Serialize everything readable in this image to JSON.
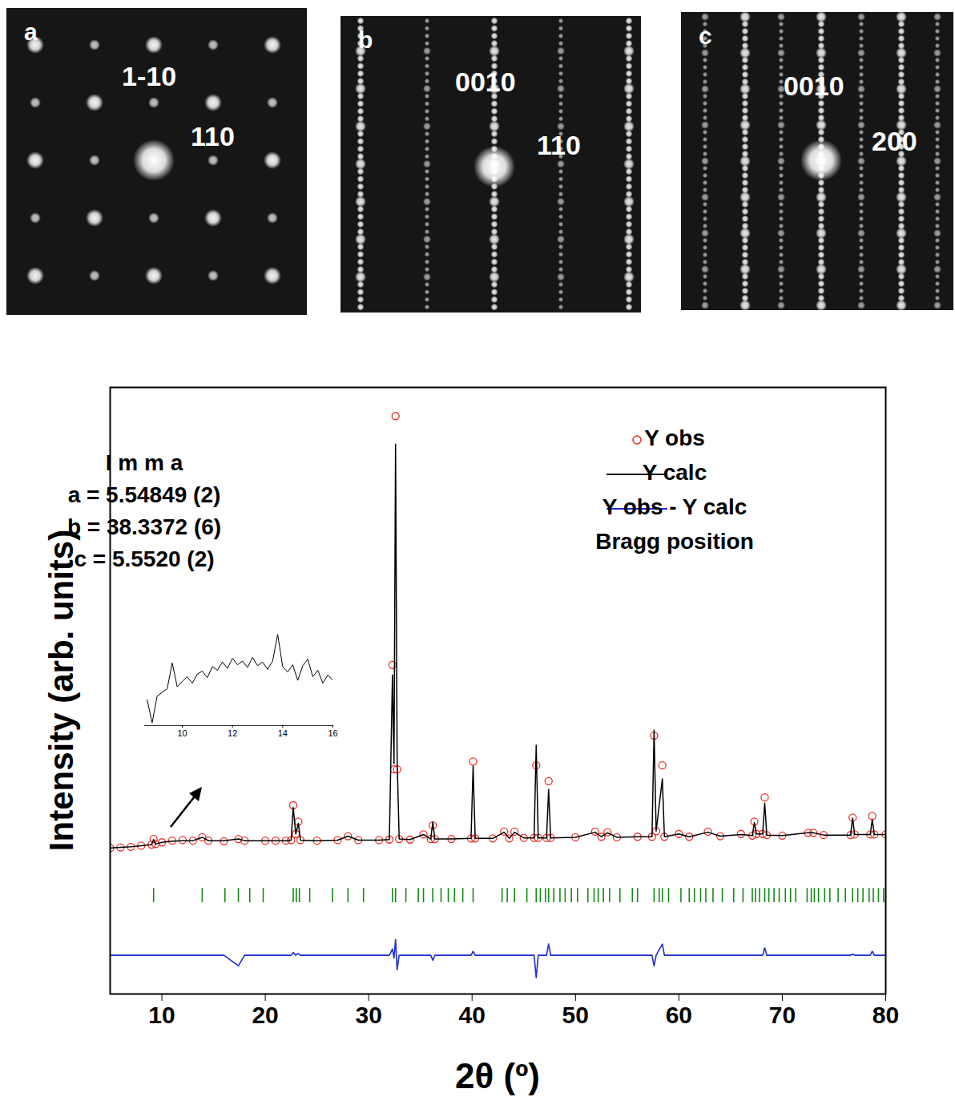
{
  "diffraction_patterns": [
    {
      "panel": "a",
      "labels": [
        "1-10",
        "110"
      ]
    },
    {
      "panel": "b",
      "labels": [
        "0010",
        "110"
      ]
    },
    {
      "panel": "c",
      "labels": [
        "0010",
        "200"
      ]
    }
  ],
  "chart_data": [
    {
      "type": "line",
      "x_label": "2θ (º)",
      "y_label": "Intensity (arb. units)",
      "annotations": [
        "I m m a",
        "a = 5.54849 (2)",
        "b = 38.3372 (6)",
        "c = 5.5520 (2)"
      ],
      "x": [
        5,
        6,
        7,
        8,
        9,
        9.2,
        9.4,
        10,
        11,
        12,
        13,
        13.9,
        14.5,
        16,
        17.4,
        18,
        20,
        21,
        22,
        22.5,
        22.7,
        22.95,
        23.2,
        23.4,
        25,
        27,
        28,
        29,
        31,
        32,
        32.3,
        32.45,
        32.6,
        32.75,
        32.95,
        34,
        35.3,
        36,
        36.2,
        36.4,
        38,
        39.9,
        40.1,
        40.3,
        42,
        43.1,
        43.6,
        44.1,
        45,
        46,
        46.2,
        46.4,
        47.2,
        47.4,
        47.6,
        50,
        51.9,
        52.5,
        53.1,
        54,
        56,
        57.4,
        57.6,
        57.8,
        58.4,
        58.6,
        60,
        61,
        62.8,
        64,
        66,
        67.1,
        67.3,
        67.5,
        68.1,
        68.3,
        68.5,
        70,
        72.5,
        73,
        74,
        76.6,
        76.8,
        77,
        78.5,
        78.7,
        78.9,
        80
      ],
      "series": [
        {
          "name": "Y obs",
          "color": "#e8302a",
          "type": "scatter",
          "marker": "circle",
          "values": [
            26.0,
            26.1,
            26.2,
            26.4,
            26.6,
            27.6,
            26.7,
            27.0,
            27.3,
            27.4,
            27.3,
            27.9,
            27.3,
            27.2,
            27.6,
            27.3,
            27.3,
            27.3,
            27.3,
            27.4,
            33.6,
            28.5,
            30.7,
            27.4,
            27.3,
            27.4,
            28.1,
            27.4,
            27.4,
            27.5,
            58.6,
            40.0,
            102.9,
            40.0,
            27.6,
            27.5,
            28.4,
            27.6,
            30.0,
            27.6,
            27.6,
            27.7,
            41.4,
            27.7,
            27.7,
            28.9,
            27.7,
            28.9,
            27.8,
            27.8,
            40.7,
            27.8,
            27.8,
            37.9,
            27.8,
            27.9,
            28.9,
            28.0,
            28.8,
            27.9,
            28.0,
            28.0,
            46.0,
            29.0,
            40.7,
            28.0,
            28.5,
            28.0,
            28.9,
            28.1,
            28.5,
            28.2,
            30.7,
            28.5,
            28.5,
            35.0,
            28.3,
            28.2,
            28.7,
            28.7,
            28.3,
            28.3,
            31.4,
            28.4,
            28.4,
            31.7,
            28.4,
            28.4
          ]
        },
        {
          "name": "Y calc",
          "color": "#000000",
          "type": "line",
          "values": [
            26.0,
            26.1,
            26.2,
            26.4,
            26.6,
            27.5,
            26.7,
            27.0,
            27.2,
            27.3,
            27.3,
            27.9,
            27.3,
            27.3,
            27.6,
            27.3,
            27.3,
            27.3,
            27.3,
            27.4,
            33.2,
            28.5,
            30.4,
            27.4,
            27.3,
            27.4,
            28.1,
            27.4,
            27.4,
            27.5,
            56.8,
            41.0,
            97.9,
            42.0,
            27.6,
            27.5,
            28.4,
            27.6,
            30.6,
            27.6,
            27.6,
            27.7,
            40.6,
            27.7,
            27.7,
            28.8,
            27.7,
            28.8,
            27.8,
            27.8,
            44.3,
            27.8,
            27.8,
            36.4,
            27.8,
            27.9,
            28.8,
            28.0,
            28.7,
            27.9,
            28.0,
            28.0,
            47.0,
            29.0,
            38.3,
            28.0,
            28.5,
            28.0,
            28.8,
            28.1,
            28.4,
            28.2,
            30.5,
            28.5,
            28.5,
            34.0,
            28.3,
            28.2,
            28.7,
            28.7,
            28.3,
            28.3,
            31.3,
            28.4,
            28.4,
            31.0,
            28.4,
            28.4
          ]
        },
        {
          "name": "Y obs - Y calc",
          "color": "#1f2bd6",
          "type": "line",
          "values": [
            6.9,
            6.9,
            6.9,
            6.9,
            6.9,
            6.9,
            6.9,
            6.9,
            6.9,
            6.9,
            6.9,
            6.9,
            6.9,
            6.9,
            5.0,
            6.9,
            6.9,
            6.9,
            6.9,
            6.9,
            7.4,
            6.9,
            7.2,
            6.9,
            6.9,
            6.9,
            6.9,
            6.9,
            6.9,
            6.9,
            8.0,
            6.4,
            9.7,
            4.3,
            6.9,
            6.9,
            6.9,
            6.9,
            6.0,
            6.9,
            6.9,
            6.9,
            7.6,
            6.9,
            6.9,
            6.9,
            6.9,
            6.9,
            6.9,
            6.9,
            2.9,
            6.9,
            6.9,
            8.9,
            6.9,
            6.9,
            6.9,
            6.9,
            6.9,
            6.9,
            6.9,
            6.9,
            5.0,
            6.9,
            8.9,
            6.9,
            6.9,
            6.9,
            6.9,
            6.9,
            6.9,
            6.9,
            6.9,
            6.9,
            6.9,
            8.2,
            6.9,
            6.9,
            6.9,
            6.9,
            6.9,
            6.9,
            7.1,
            6.9,
            6.9,
            7.6,
            6.9,
            6.9
          ]
        },
        {
          "name": "Bragg position",
          "color": "#138a13",
          "type": "scatter",
          "marker": "tick",
          "x": [
            9.2,
            13.9,
            16.1,
            17.4,
            18.5,
            19.8,
            22.7,
            23.0,
            23.3,
            24.3,
            26.5,
            28.0,
            29.5,
            32.3,
            32.6,
            33.6,
            34.8,
            35.3,
            36.2,
            37.0,
            37.7,
            38.3,
            39.1,
            40.1,
            42.9,
            43.4,
            44.1,
            45.3,
            46.2,
            46.6,
            47.1,
            47.4,
            47.9,
            48.5,
            49.0,
            49.6,
            50.2,
            51.2,
            51.8,
            52.2,
            52.7,
            53.3,
            54.3,
            55.5,
            56.0,
            57.6,
            58.1,
            58.4,
            59.0,
            60.2,
            61.0,
            61.5,
            62.1,
            62.6,
            63.3,
            64.2,
            65.3,
            66.2,
            67.1,
            67.4,
            67.8,
            68.3,
            68.7,
            69.2,
            69.7,
            70.3,
            70.8,
            71.3,
            72.4,
            72.8,
            73.1,
            73.5,
            74.1,
            74.6,
            75.4,
            76.1,
            76.8,
            77.3,
            77.8,
            78.4,
            78.8,
            79.3,
            79.8
          ],
          "values": [
            17.6,
            17.6,
            17.6,
            17.6,
            17.6,
            17.6,
            17.6,
            17.6,
            17.6,
            17.6,
            17.6,
            17.6,
            17.6,
            17.6,
            17.6,
            17.6,
            17.6,
            17.6,
            17.6,
            17.6,
            17.6,
            17.6,
            17.6,
            17.6,
            17.6,
            17.6,
            17.6,
            17.6,
            17.6,
            17.6,
            17.6,
            17.6,
            17.6,
            17.6,
            17.6,
            17.6,
            17.6,
            17.6,
            17.6,
            17.6,
            17.6,
            17.6,
            17.6,
            17.6,
            17.6,
            17.6,
            17.6,
            17.6,
            17.6,
            17.6,
            17.6,
            17.6,
            17.6,
            17.6,
            17.6,
            17.6,
            17.6,
            17.6,
            17.6,
            17.6,
            17.6,
            17.6,
            17.6,
            17.6,
            17.6,
            17.6,
            17.6,
            17.6,
            17.6,
            17.6,
            17.6,
            17.6,
            17.6,
            17.6,
            17.6,
            17.6,
            17.6,
            17.6,
            17.6,
            17.6,
            17.6,
            17.6,
            17.6
          ]
        }
      ],
      "xlim": [
        5,
        80
      ],
      "ylim": [
        0,
        108
      ],
      "xticks": [
        10,
        20,
        30,
        40,
        50,
        60,
        70,
        80
      ],
      "tick_labels": "x",
      "legend": "top-right"
    },
    {
      "type": "line",
      "color": "#000000",
      "x": [
        8.6,
        8.8,
        9.0,
        9.2,
        9.4,
        9.6,
        9.8,
        10.0,
        10.2,
        10.4,
        10.6,
        10.8,
        11.0,
        11.2,
        11.4,
        11.6,
        11.8,
        12.0,
        12.2,
        12.4,
        12.6,
        12.8,
        13.0,
        13.2,
        13.4,
        13.6,
        13.8,
        14.0,
        14.2,
        14.4,
        14.6,
        14.8,
        15.0,
        15.2,
        15.4,
        15.6,
        15.8,
        16.0
      ],
      "values": [
        2.8,
        0.3,
        3.2,
        3.6,
        4.0,
        6.8,
        4.2,
        4.8,
        5.3,
        4.6,
        5.6,
        5.9,
        5.2,
        6.4,
        6.0,
        6.9,
        6.2,
        7.3,
        6.6,
        7.0,
        6.3,
        7.4,
        6.5,
        6.9,
        6.1,
        7.0,
        9.9,
        6.4,
        5.8,
        6.6,
        4.9,
        6.5,
        7.2,
        5.3,
        6.0,
        4.6,
        5.5,
        4.9
      ],
      "xlim": [
        8.5,
        16
      ],
      "ylim": [
        0,
        10
      ],
      "xticks": [
        10,
        12,
        14,
        16
      ],
      "tick_labels": "x"
    }
  ]
}
